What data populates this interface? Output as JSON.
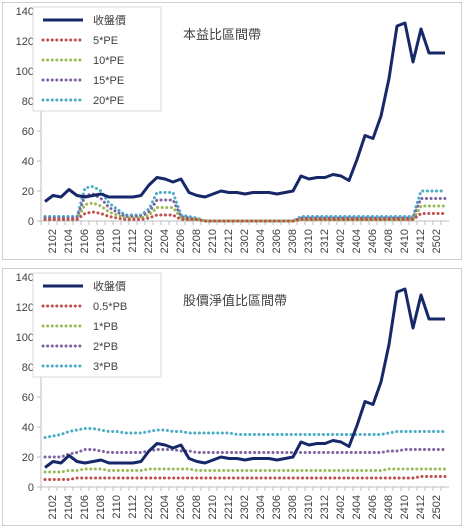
{
  "colors": {
    "close": "#172869",
    "s1": "#c0504d",
    "s2": "#9bbb59",
    "s3": "#8064a2",
    "s4": "#4bacc6"
  },
  "chart_data": [
    {
      "type": "line",
      "title": "本益比區間帶",
      "xlabel": "",
      "ylabel": "",
      "ylim": [
        0,
        140
      ],
      "yticks": [
        0,
        20,
        40,
        60,
        80,
        100,
        120,
        140
      ],
      "tick_every": 2,
      "legend_position": "top-left",
      "grid": false,
      "x": [
        "2101",
        "2102",
        "2103",
        "2104",
        "2105",
        "2106",
        "2107",
        "2108",
        "2109",
        "2110",
        "2111",
        "2112",
        "2201",
        "2202",
        "2203",
        "2204",
        "2205",
        "2206",
        "2207",
        "2208",
        "2209",
        "2210",
        "2211",
        "2212",
        "2301",
        "2302",
        "2303",
        "2304",
        "2305",
        "2306",
        "2307",
        "2308",
        "2309",
        "2310",
        "2311",
        "2312",
        "2401",
        "2402",
        "2403",
        "2404",
        "2405",
        "2406",
        "2407",
        "2408",
        "2409",
        "2410",
        "2411",
        "2412",
        "2501",
        "2502",
        "2503"
      ],
      "series": [
        {
          "name": "收盤價",
          "style": "solid",
          "values": [
            13,
            17,
            16,
            21,
            17,
            16,
            17,
            18,
            16,
            16,
            16,
            16,
            17,
            24,
            29,
            28,
            26,
            28,
            19,
            17,
            16,
            18,
            20,
            19,
            19,
            18,
            19,
            19,
            19,
            18,
            19,
            20,
            30,
            28,
            29,
            29,
            31,
            30,
            27,
            41,
            57,
            55,
            70,
            95,
            130,
            132,
            106,
            128,
            112,
            112,
            112
          ]
        },
        {
          "name": "5*PE",
          "style": "dotted",
          "values": [
            1,
            1,
            1,
            1,
            1,
            5,
            6,
            5,
            3,
            2,
            1,
            1,
            1,
            2,
            4,
            4,
            4,
            1,
            1,
            1,
            0,
            0,
            0,
            0,
            0,
            0,
            0,
            0,
            0,
            0,
            0,
            0,
            1,
            1,
            1,
            1,
            1,
            1,
            1,
            1,
            1,
            1,
            1,
            1,
            1,
            1,
            1,
            5,
            5,
            5,
            5
          ]
        },
        {
          "name": "10*PE",
          "style": "dotted",
          "values": [
            1,
            1,
            1,
            1,
            1,
            11,
            12,
            10,
            6,
            4,
            2,
            2,
            2,
            4,
            9,
            9,
            9,
            2,
            1,
            1,
            0,
            0,
            0,
            0,
            0,
            0,
            0,
            0,
            0,
            0,
            0,
            0,
            1,
            1,
            1,
            1,
            1,
            1,
            1,
            1,
            1,
            1,
            1,
            1,
            1,
            1,
            1,
            10,
            10,
            10,
            10
          ]
        },
        {
          "name": "15*PE",
          "style": "dotted",
          "values": [
            2,
            2,
            2,
            2,
            2,
            17,
            18,
            15,
            9,
            6,
            3,
            3,
            3,
            6,
            14,
            14,
            14,
            3,
            2,
            1,
            0,
            0,
            0,
            0,
            0,
            0,
            0,
            0,
            0,
            0,
            0,
            0,
            2,
            2,
            2,
            2,
            2,
            2,
            2,
            2,
            2,
            2,
            2,
            2,
            2,
            2,
            2,
            15,
            15,
            15,
            15
          ]
        },
        {
          "name": "20*PE",
          "style": "dotted",
          "values": [
            3,
            3,
            3,
            3,
            3,
            22,
            23,
            20,
            12,
            8,
            4,
            4,
            4,
            8,
            19,
            19,
            19,
            4,
            3,
            2,
            0,
            0,
            0,
            0,
            0,
            0,
            0,
            0,
            0,
            0,
            0,
            0,
            3,
            3,
            3,
            3,
            3,
            3,
            3,
            3,
            3,
            3,
            3,
            3,
            3,
            3,
            3,
            20,
            20,
            20,
            20
          ]
        }
      ]
    },
    {
      "type": "line",
      "title": "股價淨值比區間帶",
      "xlabel": "",
      "ylabel": "",
      "ylim": [
        0,
        140
      ],
      "yticks": [
        0,
        20,
        40,
        60,
        80,
        100,
        120,
        140
      ],
      "tick_every": 2,
      "legend_position": "top-left",
      "grid": false,
      "x": [
        "2101",
        "2102",
        "2103",
        "2104",
        "2105",
        "2106",
        "2107",
        "2108",
        "2109",
        "2110",
        "2111",
        "2112",
        "2201",
        "2202",
        "2203",
        "2204",
        "2205",
        "2206",
        "2207",
        "2208",
        "2209",
        "2210",
        "2211",
        "2212",
        "2301",
        "2302",
        "2303",
        "2304",
        "2305",
        "2306",
        "2307",
        "2308",
        "2309",
        "2310",
        "2311",
        "2312",
        "2401",
        "2402",
        "2403",
        "2404",
        "2405",
        "2406",
        "2407",
        "2408",
        "2409",
        "2410",
        "2411",
        "2412",
        "2501",
        "2502",
        "2503"
      ],
      "series": [
        {
          "name": "收盤價",
          "style": "solid",
          "values": [
            13,
            17,
            16,
            21,
            17,
            16,
            17,
            18,
            16,
            16,
            16,
            16,
            17,
            24,
            29,
            28,
            26,
            28,
            19,
            17,
            16,
            18,
            20,
            19,
            19,
            18,
            19,
            19,
            19,
            18,
            19,
            20,
            30,
            28,
            29,
            29,
            31,
            30,
            27,
            41,
            57,
            55,
            70,
            95,
            130,
            132,
            106,
            128,
            112,
            112,
            112
          ]
        },
        {
          "name": "0.5*PB",
          "style": "dotted",
          "values": [
            5,
            5,
            5,
            5,
            6,
            6,
            6,
            6,
            6,
            6,
            6,
            6,
            6,
            6,
            6,
            6,
            6,
            6,
            6,
            6,
            6,
            6,
            6,
            6,
            6,
            6,
            6,
            6,
            6,
            6,
            6,
            6,
            6,
            6,
            6,
            6,
            6,
            6,
            6,
            6,
            6,
            6,
            6,
            6,
            6,
            6,
            6,
            7,
            7,
            7,
            7
          ]
        },
        {
          "name": "1*PB",
          "style": "dotted",
          "values": [
            10,
            10,
            10,
            11,
            11,
            12,
            12,
            12,
            11,
            11,
            11,
            11,
            11,
            12,
            12,
            12,
            12,
            12,
            12,
            11,
            11,
            11,
            11,
            11,
            11,
            11,
            11,
            11,
            11,
            11,
            11,
            11,
            11,
            11,
            11,
            11,
            11,
            11,
            11,
            11,
            11,
            11,
            11,
            12,
            12,
            12,
            12,
            12,
            12,
            12,
            12
          ]
        },
        {
          "name": "2*PB",
          "style": "dotted",
          "values": [
            20,
            20,
            20,
            22,
            23,
            25,
            25,
            24,
            23,
            23,
            23,
            23,
            23,
            24,
            25,
            25,
            25,
            24,
            24,
            23,
            23,
            23,
            23,
            23,
            23,
            23,
            23,
            23,
            23,
            23,
            23,
            23,
            23,
            23,
            23,
            23,
            23,
            23,
            23,
            23,
            23,
            23,
            23,
            24,
            24,
            25,
            25,
            25,
            25,
            25,
            25
          ]
        },
        {
          "name": "3*PB",
          "style": "dotted",
          "values": [
            33,
            34,
            35,
            37,
            38,
            39,
            39,
            38,
            37,
            37,
            36,
            36,
            36,
            37,
            38,
            38,
            37,
            37,
            36,
            36,
            36,
            36,
            36,
            36,
            35,
            35,
            35,
            35,
            35,
            35,
            35,
            35,
            35,
            35,
            35,
            35,
            35,
            35,
            35,
            35,
            35,
            35,
            35,
            36,
            37,
            37,
            37,
            37,
            37,
            37,
            37
          ]
        }
      ]
    }
  ]
}
